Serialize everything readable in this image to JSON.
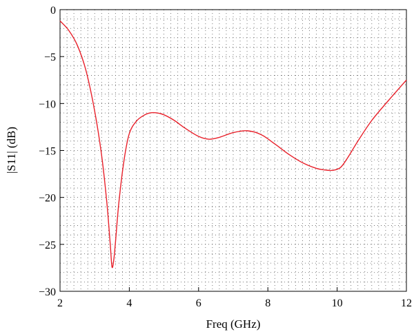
{
  "chart_data": {
    "type": "line",
    "title": "",
    "xlabel": "Freq (GHz)",
    "ylabel": "|S11| (dB)",
    "xlim": [
      2,
      12
    ],
    "ylim": [
      -30,
      0
    ],
    "xticks": [
      2,
      4,
      6,
      8,
      10,
      12
    ],
    "yticks": [
      0,
      -5,
      -10,
      -15,
      -20,
      -25,
      -30
    ],
    "grid": "dotted",
    "series": [
      {
        "color": "#e8202a",
        "x": [
          2.0,
          2.25,
          2.5,
          2.75,
          3.0,
          3.2,
          3.35,
          3.45,
          3.5,
          3.55,
          3.6,
          3.7,
          3.85,
          4.0,
          4.2,
          4.4,
          4.6,
          4.8,
          5.0,
          5.3,
          5.6,
          6.0,
          6.3,
          6.6,
          7.0,
          7.4,
          7.8,
          8.2,
          8.6,
          9.0,
          9.4,
          9.7,
          9.9,
          10.1,
          10.3,
          10.6,
          11.0,
          11.5,
          12.0
        ],
        "y": [
          -1.2,
          -2.2,
          -3.8,
          -6.5,
          -10.8,
          -15.5,
          -20.5,
          -25.0,
          -27.4,
          -26.7,
          -24.8,
          -20.5,
          -16.0,
          -13.2,
          -11.9,
          -11.3,
          -11.0,
          -11.0,
          -11.2,
          -11.8,
          -12.6,
          -13.5,
          -13.8,
          -13.6,
          -13.1,
          -12.9,
          -13.3,
          -14.3,
          -15.4,
          -16.3,
          -16.9,
          -17.1,
          -17.1,
          -16.8,
          -15.8,
          -14.0,
          -11.8,
          -9.6,
          -7.5
        ]
      }
    ]
  }
}
